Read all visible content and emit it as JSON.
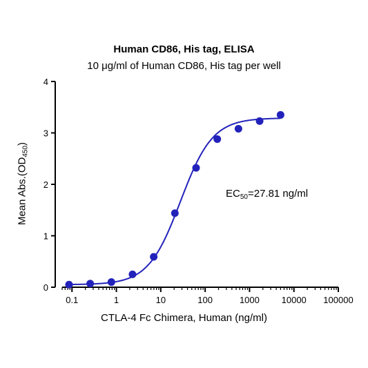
{
  "chart_data": {
    "type": "scatter",
    "title": "Human CD86, His tag, ELISA",
    "subtitle": "10 μg/ml of Human CD86, His tag per well",
    "xlabel": "CTLA-4 Fc Chimera, Human (ng/ml)",
    "ylabel": {
      "main": "Mean Abs.(OD",
      "sub": "450",
      "tail": ")"
    },
    "x_scale": "log",
    "xlim": [
      0.06,
      100000
    ],
    "ylim": [
      0,
      4
    ],
    "x_ticks": [
      0.1,
      1,
      10,
      100,
      1000,
      10000,
      100000
    ],
    "x_tick_labels": [
      "0.1",
      "1",
      "10",
      "100",
      "1000",
      "10000",
      "100000"
    ],
    "y_ticks": [
      0,
      1,
      2,
      3,
      4
    ],
    "y_tick_labels": [
      "0",
      "1",
      "2",
      "3",
      "4"
    ],
    "grid": false,
    "color": "#2222bb",
    "annotation": {
      "prefix": "EC",
      "sub": "50",
      "value": "=27.81 ng/ml"
    },
    "series": [
      {
        "x": [
          0.0858,
          0.257,
          0.772,
          2.31,
          6.94,
          20.8,
          62.5,
          187.5,
          562.5,
          1687.5,
          5000
        ],
        "y": [
          0.05,
          0.07,
          0.1,
          0.25,
          0.59,
          1.44,
          2.32,
          2.88,
          3.08,
          3.23,
          3.35
        ]
      }
    ],
    "fit": {
      "model": "4PL",
      "bottom": 0.05,
      "top": 3.29,
      "ec50": 27.81,
      "hill": 1.2,
      "x_range": [
        0.0858,
        5000
      ]
    }
  }
}
